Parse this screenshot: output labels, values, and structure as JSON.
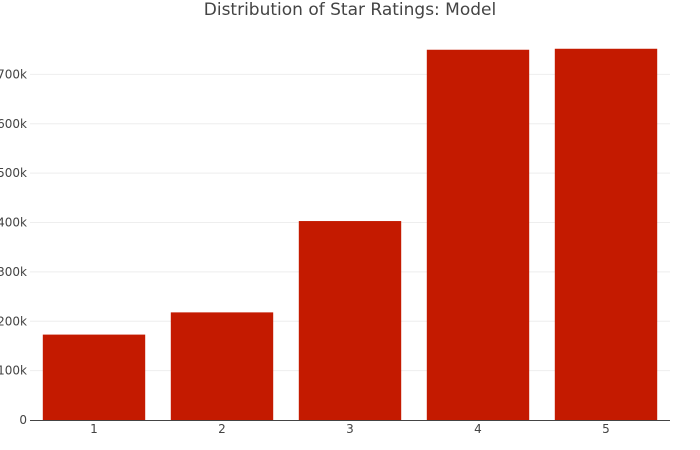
{
  "chart_data": {
    "type": "bar",
    "title": "Distribution of Star Ratings: Model",
    "xlabel": "",
    "ylabel": "",
    "categories": [
      "1",
      "2",
      "3",
      "4",
      "5"
    ],
    "values": [
      173000,
      218000,
      403000,
      750000,
      752000
    ],
    "ylim": [
      0,
      790000
    ],
    "yticks": [
      0,
      100000,
      200000,
      300000,
      400000,
      500000,
      600000,
      700000
    ],
    "ytick_labels": [
      "0",
      "100k",
      "200k",
      "300k",
      "400k",
      "500k",
      "600k",
      "700k"
    ],
    "bar_color": "#C41A00",
    "grid": true,
    "legend": "none"
  }
}
